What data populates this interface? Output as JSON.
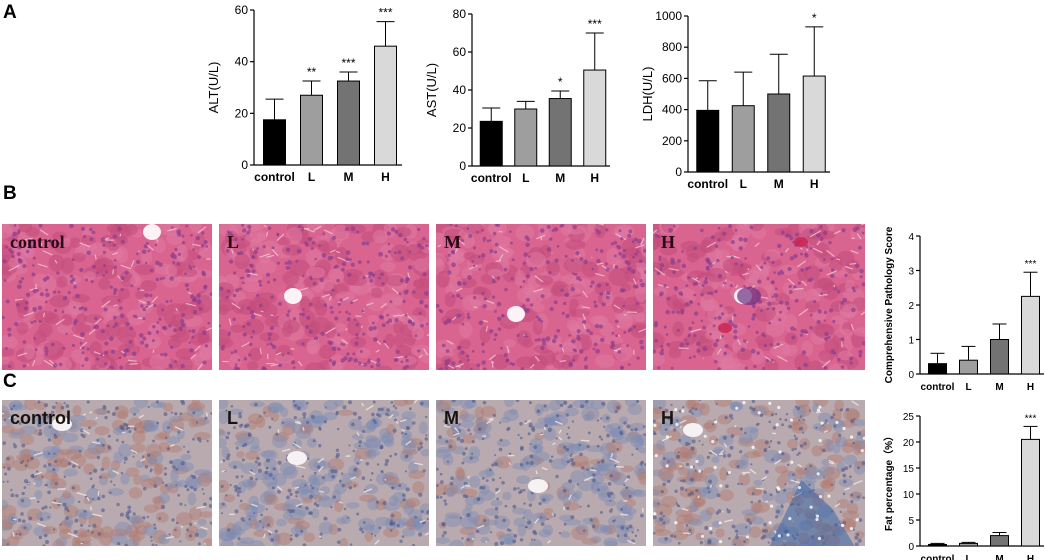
{
  "panels": {
    "a": "A",
    "b": "B",
    "c": "C"
  },
  "colors": {
    "control": "#000000",
    "L": "#9e9e9e",
    "M": "#737373",
    "H": "#d9d9d9",
    "he_bg": "#d8648f",
    "he_cell": "#c24c7c",
    "he_nuc": "#8a3d8f",
    "ihc_bg": "#b9aab0",
    "ihc_warm": "#b27a6f",
    "ihc_blue": "#7d8bb4"
  },
  "micrographs": {
    "he": [
      {
        "label": "control"
      },
      {
        "label": "L"
      },
      {
        "label": "M"
      },
      {
        "label": "H"
      }
    ],
    "ihc": [
      {
        "label": "control"
      },
      {
        "label": "L"
      },
      {
        "label": "M"
      },
      {
        "label": "H"
      }
    ]
  },
  "chart_data": [
    {
      "id": "alt",
      "type": "bar",
      "categories": [
        "control",
        "L",
        "M",
        "H"
      ],
      "values": [
        17.5,
        27,
        32.5,
        46
      ],
      "errors": [
        8,
        5.5,
        3.5,
        9.5
      ],
      "significance": [
        "",
        "**",
        "***",
        "***"
      ],
      "ylabel": "ALT(U/L)",
      "ylim": [
        0,
        60
      ],
      "yticks": [
        0,
        20,
        40,
        60
      ]
    },
    {
      "id": "ast",
      "type": "bar",
      "categories": [
        "control",
        "L",
        "M",
        "H"
      ],
      "values": [
        23.5,
        30,
        35.5,
        50.5
      ],
      "errors": [
        7,
        4,
        4,
        19.5
      ],
      "significance": [
        "",
        "",
        "*",
        "***"
      ],
      "ylabel": "AST(U/L)",
      "ylim": [
        0,
        80
      ],
      "yticks": [
        0,
        20,
        40,
        60,
        80
      ]
    },
    {
      "id": "ldh",
      "type": "bar",
      "categories": [
        "control",
        "L",
        "M",
        "H"
      ],
      "values": [
        395,
        425,
        500,
        615
      ],
      "errors": [
        190,
        215,
        255,
        315
      ],
      "significance": [
        "",
        "",
        "",
        "*"
      ],
      "ylabel": "LDH(U/L)",
      "ylim": [
        0,
        1000
      ],
      "yticks": [
        0,
        200,
        400,
        600,
        800,
        1000
      ]
    },
    {
      "id": "pathology",
      "type": "bar",
      "categories": [
        "control",
        "L",
        "M",
        "H"
      ],
      "values": [
        0.3,
        0.4,
        1.0,
        2.25
      ],
      "errors": [
        0.3,
        0.4,
        0.45,
        0.7
      ],
      "significance": [
        "",
        "",
        "",
        "***"
      ],
      "ylabel": "Comprehensive Pathology Score",
      "ylim": [
        0,
        4
      ],
      "yticks": [
        0,
        1,
        2,
        3,
        4
      ]
    },
    {
      "id": "fat",
      "type": "bar",
      "categories": [
        "control",
        "L",
        "M",
        "H"
      ],
      "values": [
        0.3,
        0.5,
        2.0,
        20.5
      ],
      "errors": [
        0.2,
        0.2,
        0.6,
        2.5
      ],
      "significance": [
        "",
        "",
        "",
        "***"
      ],
      "ylabel": "Fat percentage（%）",
      "ylim": [
        0,
        25
      ],
      "yticks": [
        0,
        5,
        10,
        15,
        20,
        25
      ]
    }
  ]
}
